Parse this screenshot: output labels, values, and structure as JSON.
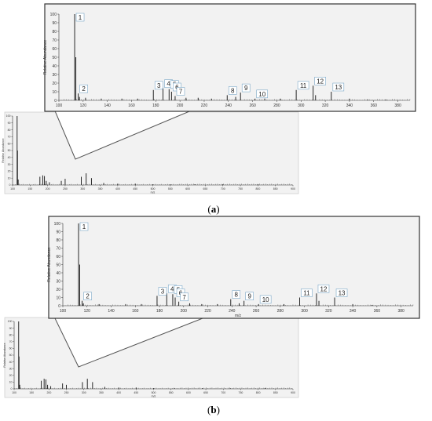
{
  "panels": [
    {
      "caption": "(a)",
      "caption_letter": "a"
    },
    {
      "caption": "(b)",
      "caption_letter": "b"
    }
  ],
  "chart_data": [
    {
      "id": "a-zoom",
      "type": "bar",
      "xlabel": "",
      "ylabel": "Relative Abundance",
      "xlim": [
        100,
        390
      ],
      "ylim": [
        0,
        100
      ],
      "xticks": [
        100,
        120,
        140,
        160,
        180,
        200,
        220,
        240,
        260,
        280,
        300,
        320,
        340,
        360,
        380
      ],
      "yticks": [
        0,
        10,
        20,
        30,
        40,
        50,
        60,
        70,
        80,
        90,
        100
      ],
      "peaks": [
        {
          "x": 113,
          "y": 100
        },
        {
          "x": 114,
          "y": 50
        },
        {
          "x": 116,
          "y": 8
        },
        {
          "x": 117,
          "y": 4
        },
        {
          "x": 122,
          "y": 3
        },
        {
          "x": 135,
          "y": 2
        },
        {
          "x": 152,
          "y": 2
        },
        {
          "x": 165,
          "y": 2
        },
        {
          "x": 178,
          "y": 12
        },
        {
          "x": 186,
          "y": 14
        },
        {
          "x": 191,
          "y": 13
        },
        {
          "x": 193,
          "y": 10
        },
        {
          "x": 196,
          "y": 5
        },
        {
          "x": 205,
          "y": 3
        },
        {
          "x": 215,
          "y": 3
        },
        {
          "x": 226,
          "y": 2
        },
        {
          "x": 239,
          "y": 6
        },
        {
          "x": 246,
          "y": 4
        },
        {
          "x": 250,
          "y": 9
        },
        {
          "x": 262,
          "y": 2
        },
        {
          "x": 270,
          "y": 2
        },
        {
          "x": 283,
          "y": 2
        },
        {
          "x": 296,
          "y": 12
        },
        {
          "x": 310,
          "y": 17
        },
        {
          "x": 312,
          "y": 6
        },
        {
          "x": 325,
          "y": 10
        },
        {
          "x": 340,
          "y": 2
        },
        {
          "x": 355,
          "y": 1
        },
        {
          "x": 370,
          "y": 1
        }
      ],
      "labels": [
        {
          "text": "1",
          "x": 113,
          "y": 100
        },
        {
          "text": "2",
          "x": 116,
          "y": 8
        },
        {
          "text": "3",
          "x": 178,
          "y": 12
        },
        {
          "text": "4",
          "x": 186,
          "y": 14
        },
        {
          "text": "5",
          "x": 191,
          "y": 13
        },
        {
          "text": "6",
          "x": 193,
          "y": 10
        },
        {
          "text": "7",
          "x": 196,
          "y": 5
        },
        {
          "text": "8",
          "x": 239,
          "y": 6
        },
        {
          "text": "9",
          "x": 250,
          "y": 9
        },
        {
          "text": "10",
          "x": 262,
          "y": 2
        },
        {
          "text": "11",
          "x": 296,
          "y": 12
        },
        {
          "text": "12",
          "x": 310,
          "y": 17
        },
        {
          "text": "13",
          "x": 325,
          "y": 10
        }
      ]
    },
    {
      "id": "a-full",
      "type": "bar",
      "xlabel": "m/z",
      "ylabel": "Relative Abundance",
      "xlim": [
        100,
        900
      ],
      "ylim": [
        0,
        100
      ],
      "xticks": [
        100,
        150,
        200,
        250,
        300,
        350,
        400,
        450,
        500,
        550,
        600,
        650,
        700,
        750,
        800,
        850,
        900
      ],
      "yticks": [
        0,
        10,
        20,
        30,
        40,
        50,
        60,
        70,
        80,
        90,
        100
      ],
      "peaks": [
        {
          "x": 113,
          "y": 100
        },
        {
          "x": 114,
          "y": 50
        },
        {
          "x": 116,
          "y": 8
        },
        {
          "x": 178,
          "y": 12
        },
        {
          "x": 186,
          "y": 14
        },
        {
          "x": 191,
          "y": 13
        },
        {
          "x": 196,
          "y": 6
        },
        {
          "x": 205,
          "y": 4
        },
        {
          "x": 239,
          "y": 6
        },
        {
          "x": 250,
          "y": 9
        },
        {
          "x": 296,
          "y": 12
        },
        {
          "x": 310,
          "y": 17
        },
        {
          "x": 325,
          "y": 10
        },
        {
          "x": 360,
          "y": 3
        },
        {
          "x": 400,
          "y": 2
        },
        {
          "x": 450,
          "y": 2
        },
        {
          "x": 500,
          "y": 1
        },
        {
          "x": 550,
          "y": 1
        },
        {
          "x": 620,
          "y": 1
        },
        {
          "x": 700,
          "y": 1
        },
        {
          "x": 800,
          "y": 1
        }
      ]
    },
    {
      "id": "b-zoom",
      "type": "bar",
      "xlabel": "m/z",
      "ylabel": "Relative Abundance",
      "xlim": [
        100,
        390
      ],
      "ylim": [
        0,
        100
      ],
      "xticks": [
        100,
        120,
        140,
        160,
        180,
        200,
        220,
        240,
        260,
        280,
        300,
        320,
        340,
        360,
        380
      ],
      "yticks": [
        0,
        10,
        20,
        30,
        40,
        50,
        60,
        70,
        80,
        90,
        100
      ],
      "peaks": [
        {
          "x": 113,
          "y": 100
        },
        {
          "x": 114,
          "y": 50
        },
        {
          "x": 116,
          "y": 6
        },
        {
          "x": 117,
          "y": 3
        },
        {
          "x": 130,
          "y": 2
        },
        {
          "x": 152,
          "y": 2
        },
        {
          "x": 165,
          "y": 2
        },
        {
          "x": 178,
          "y": 12
        },
        {
          "x": 186,
          "y": 15
        },
        {
          "x": 191,
          "y": 14
        },
        {
          "x": 193,
          "y": 10
        },
        {
          "x": 196,
          "y": 5
        },
        {
          "x": 205,
          "y": 3
        },
        {
          "x": 215,
          "y": 2
        },
        {
          "x": 228,
          "y": 2
        },
        {
          "x": 239,
          "y": 8
        },
        {
          "x": 246,
          "y": 3
        },
        {
          "x": 250,
          "y": 6
        },
        {
          "x": 262,
          "y": 2
        },
        {
          "x": 283,
          "y": 2
        },
        {
          "x": 296,
          "y": 10
        },
        {
          "x": 310,
          "y": 15
        },
        {
          "x": 312,
          "y": 6
        },
        {
          "x": 325,
          "y": 10
        },
        {
          "x": 340,
          "y": 2
        },
        {
          "x": 356,
          "y": 1
        }
      ],
      "labels": [
        {
          "text": "1",
          "x": 113,
          "y": 100
        },
        {
          "text": "2",
          "x": 116,
          "y": 6
        },
        {
          "text": "3",
          "x": 178,
          "y": 12
        },
        {
          "text": "4",
          "x": 186,
          "y": 15
        },
        {
          "text": "5",
          "x": 191,
          "y": 14
        },
        {
          "text": "6",
          "x": 193,
          "y": 10
        },
        {
          "text": "7",
          "x": 196,
          "y": 5
        },
        {
          "text": "8",
          "x": 239,
          "y": 8
        },
        {
          "text": "9",
          "x": 250,
          "y": 6
        },
        {
          "text": "10",
          "x": 262,
          "y": 2
        },
        {
          "text": "11",
          "x": 296,
          "y": 10
        },
        {
          "text": "12",
          "x": 310,
          "y": 15
        },
        {
          "text": "13",
          "x": 325,
          "y": 10
        }
      ]
    },
    {
      "id": "b-full",
      "type": "bar",
      "xlabel": "m/z",
      "ylabel": "Relative Abundance",
      "xlim": [
        100,
        900
      ],
      "ylim": [
        0,
        100
      ],
      "xticks": [
        100,
        150,
        200,
        250,
        300,
        350,
        400,
        450,
        500,
        550,
        600,
        650,
        700,
        750,
        800,
        850,
        900
      ],
      "yticks": [
        0,
        10,
        20,
        30,
        40,
        50,
        60,
        70,
        80,
        90,
        100
      ],
      "peaks": [
        {
          "x": 113,
          "y": 100
        },
        {
          "x": 114,
          "y": 48
        },
        {
          "x": 116,
          "y": 6
        },
        {
          "x": 178,
          "y": 12
        },
        {
          "x": 186,
          "y": 15
        },
        {
          "x": 191,
          "y": 14
        },
        {
          "x": 196,
          "y": 6
        },
        {
          "x": 205,
          "y": 4
        },
        {
          "x": 239,
          "y": 8
        },
        {
          "x": 250,
          "y": 6
        },
        {
          "x": 296,
          "y": 10
        },
        {
          "x": 310,
          "y": 15
        },
        {
          "x": 325,
          "y": 10
        },
        {
          "x": 360,
          "y": 3
        },
        {
          "x": 400,
          "y": 2
        },
        {
          "x": 450,
          "y": 2
        },
        {
          "x": 500,
          "y": 1
        },
        {
          "x": 560,
          "y": 1
        },
        {
          "x": 640,
          "y": 1
        },
        {
          "x": 720,
          "y": 1
        },
        {
          "x": 820,
          "y": 1
        }
      ]
    }
  ]
}
